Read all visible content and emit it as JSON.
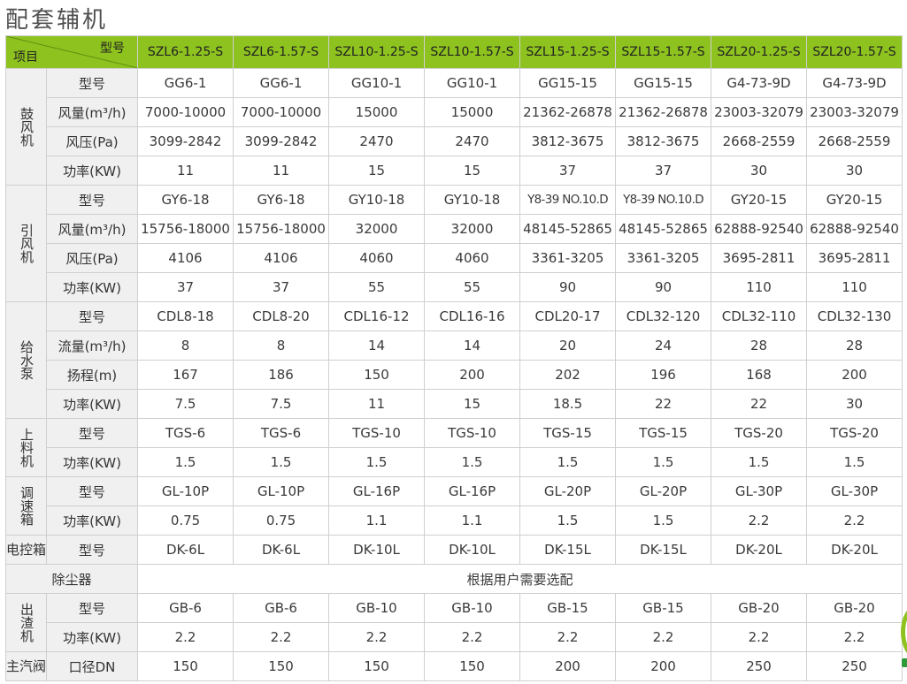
{
  "title": "配套辅机",
  "header": {
    "corner_top": "型号",
    "corner_bottom": "项目",
    "models": [
      "SZL6-1.25-S",
      "SZL6-1.57-S",
      "SZL10-1.25-S",
      "SZL10-1.57-S",
      "SZL15-1.25-S",
      "SZL15-1.57-S",
      "SZL20-1.25-S",
      "SZL20-1.57-S"
    ]
  },
  "groups": [
    {
      "name": "鼓风机",
      "rows": [
        {
          "param": "型号",
          "values": [
            "GG6-1",
            "GG6-1",
            "GG10-1",
            "GG10-1",
            "GG15-15",
            "GG15-15",
            "G4-73-9D",
            "G4-73-9D"
          ]
        },
        {
          "param": "风量(m³/h)",
          "values": [
            "7000-10000",
            "7000-10000",
            "15000",
            "15000",
            "21362-26878",
            "21362-26878",
            "23003-32079",
            "23003-32079"
          ]
        },
        {
          "param": "风压(Pa)",
          "values": [
            "3099-2842",
            "3099-2842",
            "2470",
            "2470",
            "3812-3675",
            "3812-3675",
            "2668-2559",
            "2668-2559"
          ]
        },
        {
          "param": "功率(KW)",
          "values": [
            "11",
            "11",
            "15",
            "15",
            "37",
            "37",
            "30",
            "30"
          ]
        }
      ]
    },
    {
      "name": "引风机",
      "rows": [
        {
          "param": "型号",
          "values": [
            "GY6-18",
            "GY6-18",
            "GY10-18",
            "GY10-18",
            "Y8-39 NO.10.D",
            "Y8-39 NO.10.D",
            "GY20-15",
            "GY20-15"
          ]
        },
        {
          "param": "风量(m³/h)",
          "values": [
            "15756-18000",
            "15756-18000",
            "32000",
            "32000",
            "48145-52865",
            "48145-52865",
            "62888-92540",
            "62888-92540"
          ]
        },
        {
          "param": "风压(Pa)",
          "values": [
            "4106",
            "4106",
            "4060",
            "4060",
            "3361-3205",
            "3361-3205",
            "3695-2811",
            "3695-2811"
          ]
        },
        {
          "param": "功率(KW)",
          "values": [
            "37",
            "37",
            "55",
            "55",
            "90",
            "90",
            "110",
            "110"
          ]
        }
      ]
    },
    {
      "name": "给水泵",
      "rows": [
        {
          "param": "型号",
          "values": [
            "CDL8-18",
            "CDL8-20",
            "CDL16-12",
            "CDL16-16",
            "CDL20-17",
            "CDL32-120",
            "CDL32-110",
            "CDL32-130"
          ]
        },
        {
          "param": "流量(m³/h)",
          "values": [
            "8",
            "8",
            "14",
            "14",
            "20",
            "24",
            "28",
            "28"
          ]
        },
        {
          "param": "扬程(m)",
          "values": [
            "167",
            "186",
            "150",
            "200",
            "202",
            "196",
            "168",
            "200"
          ]
        },
        {
          "param": "功率(KW)",
          "values": [
            "7.5",
            "7.5",
            "11",
            "15",
            "18.5",
            "22",
            "22",
            "30"
          ]
        }
      ]
    },
    {
      "name": "上料机",
      "rows": [
        {
          "param": "型号",
          "values": [
            "TGS-6",
            "TGS-6",
            "TGS-10",
            "TGS-10",
            "TGS-15",
            "TGS-15",
            "TGS-20",
            "TGS-20"
          ]
        },
        {
          "param": "功率(KW)",
          "values": [
            "1.5",
            "1.5",
            "1.5",
            "1.5",
            "1.5",
            "1.5",
            "1.5",
            "1.5"
          ]
        }
      ]
    },
    {
      "name": "调速箱",
      "rows": [
        {
          "param": "型号",
          "values": [
            "GL-10P",
            "GL-10P",
            "GL-16P",
            "GL-16P",
            "GL-20P",
            "GL-20P",
            "GL-30P",
            "GL-30P"
          ]
        },
        {
          "param": "功率(KW)",
          "values": [
            "0.75",
            "0.75",
            "1.1",
            "1.1",
            "1.5",
            "1.5",
            "2.2",
            "2.2"
          ]
        }
      ]
    },
    {
      "name": "电控箱",
      "rows": [
        {
          "param": "型号",
          "values": [
            "DK-6L",
            "DK-6L",
            "DK-10L",
            "DK-10L",
            "DK-15L",
            "DK-15L",
            "DK-20L",
            "DK-20L"
          ]
        }
      ]
    }
  ],
  "dust_collector": {
    "label": "除尘器",
    "note": "根据用户需要选配"
  },
  "groups_after": [
    {
      "name": "出渣机",
      "rows": [
        {
          "param": "型号",
          "values": [
            "GB-6",
            "GB-6",
            "GB-10",
            "GB-10",
            "GB-15",
            "GB-15",
            "GB-20",
            "GB-20"
          ]
        },
        {
          "param": "功率(KW)",
          "values": [
            "2.2",
            "2.2",
            "2.2",
            "2.2",
            "2.2",
            "2.2",
            "2.2",
            "2.2"
          ]
        }
      ]
    },
    {
      "name": "主汽阀",
      "rows": [
        {
          "param": "口径DN",
          "values": [
            "150",
            "150",
            "150",
            "150",
            "200",
            "200",
            "250",
            "250"
          ]
        }
      ]
    }
  ],
  "colors": {
    "accent": "#8dc21f",
    "label_bg": "#f0f0f0",
    "border": "#cfcfcf"
  }
}
